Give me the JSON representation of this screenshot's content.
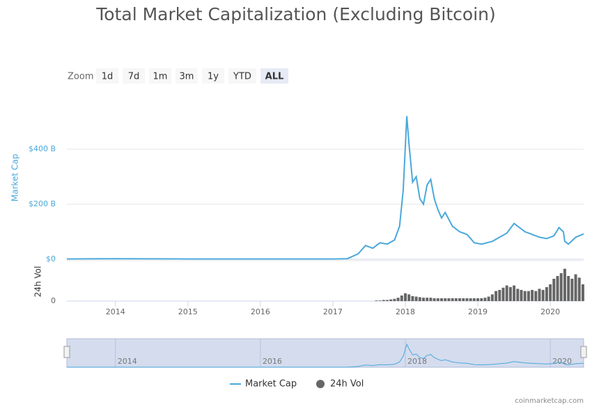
{
  "chart_data": {
    "type": "line",
    "title": "Total Market Capitalization (Excluding Bitcoin)",
    "zoom_label": "Zoom",
    "zoom_buttons": [
      "1d",
      "7d",
      "1m",
      "3m",
      "1y",
      "YTD",
      "ALL"
    ],
    "zoom_active": 6,
    "y_label": "Market Cap",
    "y2_label": "24h Vol",
    "xlim": [
      2013.33,
      2020.46
    ],
    "xticks": [
      2014,
      2015,
      2016,
      2017,
      2018,
      2019,
      2020
    ],
    "ylim": [
      0,
      600
    ],
    "yticks": [
      {
        "value": 0,
        "label": "$0"
      },
      {
        "value": 200,
        "label": "$200 B"
      },
      {
        "value": 400,
        "label": "$400 B"
      }
    ],
    "y2lim": [
      0,
      70
    ],
    "y2ticks": [
      0
    ],
    "navigator_ticks": [
      2014,
      2016,
      2018,
      2020
    ],
    "grid": true,
    "series": [
      {
        "name": "Market Cap",
        "color": "#4aa8db",
        "x": [
          2013.33,
          2014,
          2015,
          2016,
          2017,
          2017.2,
          2017.35,
          2017.45,
          2017.55,
          2017.65,
          2017.75,
          2017.85,
          2017.92,
          2017.97,
          2018.02,
          2018.05,
          2018.1,
          2018.15,
          2018.2,
          2018.25,
          2018.3,
          2018.35,
          2018.4,
          2018.45,
          2018.5,
          2018.55,
          2018.65,
          2018.75,
          2018.85,
          2018.95,
          2019.05,
          2019.2,
          2019.3,
          2019.4,
          2019.5,
          2019.55,
          2019.65,
          2019.75,
          2019.85,
          2019.95,
          2020.05,
          2020.12,
          2020.18,
          2020.2,
          2020.25,
          2020.35,
          2020.46
        ],
        "values": [
          1,
          2,
          1,
          1,
          1,
          2,
          20,
          50,
          40,
          60,
          55,
          70,
          120,
          250,
          520,
          420,
          280,
          300,
          220,
          200,
          270,
          290,
          220,
          180,
          150,
          170,
          120,
          100,
          90,
          60,
          55,
          65,
          80,
          95,
          130,
          120,
          100,
          90,
          80,
          75,
          85,
          115,
          100,
          65,
          55,
          80,
          92
        ]
      },
      {
        "name": "24h Vol",
        "color": "#666666",
        "axis": "y2",
        "x": [
          2017.6,
          2017.65,
          2017.7,
          2017.75,
          2017.8,
          2017.85,
          2017.9,
          2017.95,
          2018.0,
          2018.05,
          2018.1,
          2018.15,
          2018.2,
          2018.25,
          2018.3,
          2018.35,
          2018.4,
          2018.45,
          2018.5,
          2018.55,
          2018.6,
          2018.65,
          2018.7,
          2018.75,
          2018.8,
          2018.85,
          2018.9,
          2018.95,
          2019.0,
          2019.05,
          2019.1,
          2019.15,
          2019.2,
          2019.25,
          2019.3,
          2019.35,
          2019.4,
          2019.45,
          2019.5,
          2019.55,
          2019.6,
          2019.65,
          2019.7,
          2019.75,
          2019.8,
          2019.85,
          2019.9,
          2019.95,
          2020.0,
          2020.05,
          2020.1,
          2020.15,
          2020.2,
          2020.25,
          2020.3,
          2020.35,
          2020.4,
          2020.45
        ],
        "values": [
          1,
          1,
          2,
          2,
          3,
          4,
          6,
          10,
          14,
          12,
          9,
          8,
          7,
          6,
          6,
          6,
          5,
          5,
          5,
          5,
          5,
          5,
          5,
          5,
          5,
          5,
          5,
          5,
          5,
          5,
          6,
          8,
          12,
          18,
          20,
          24,
          28,
          25,
          28,
          22,
          20,
          18,
          18,
          20,
          18,
          22,
          20,
          25,
          30,
          40,
          45,
          50,
          58,
          45,
          40,
          48,
          42,
          30
        ]
      }
    ],
    "credit": "coinmarketcap.com"
  }
}
